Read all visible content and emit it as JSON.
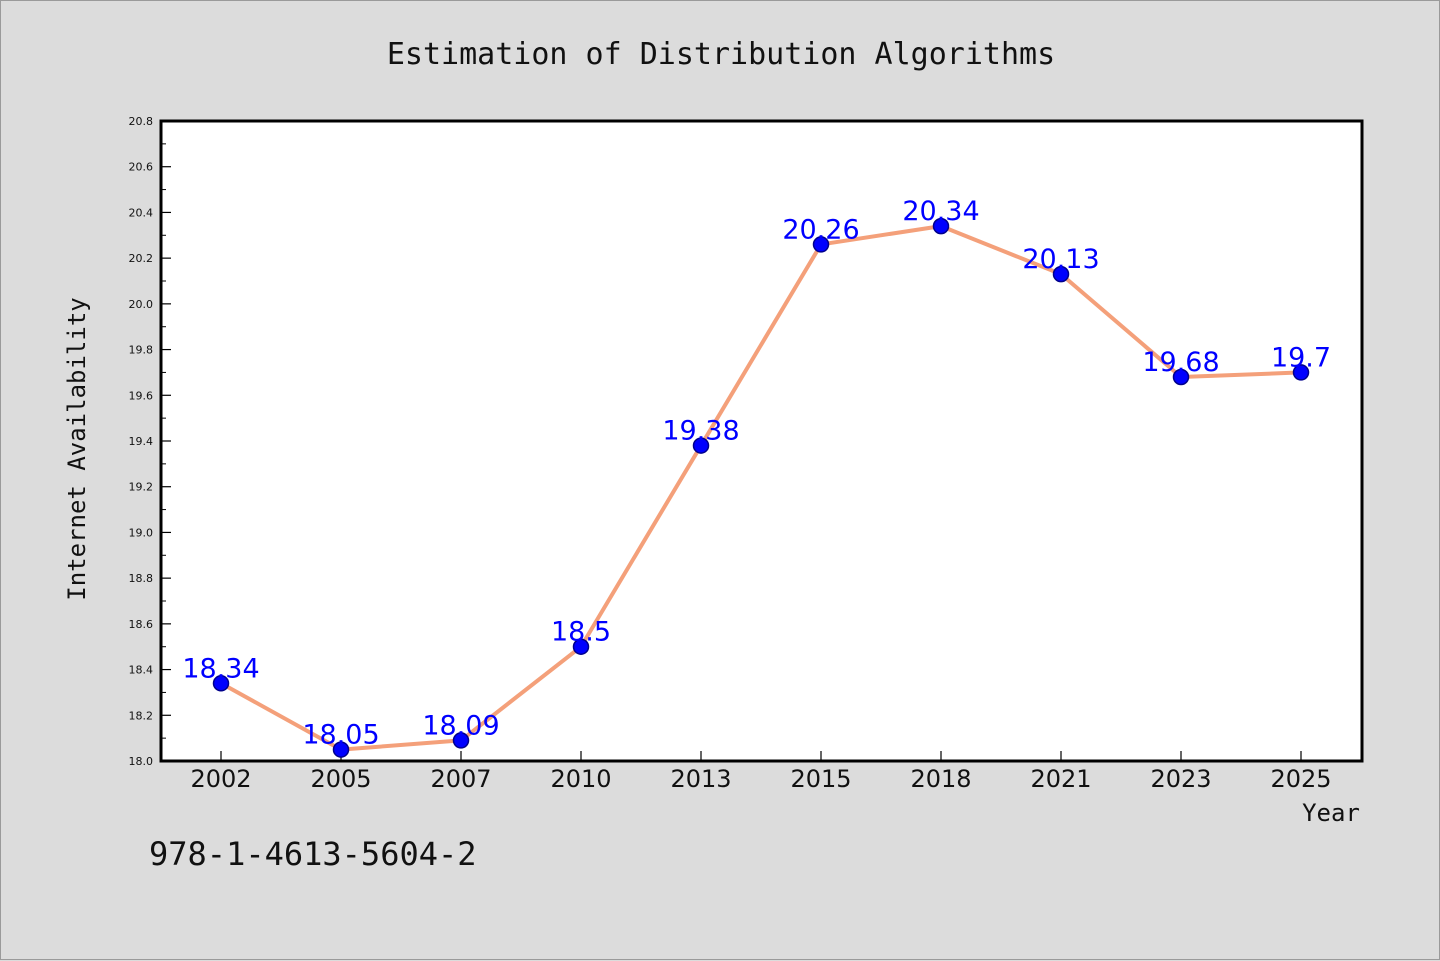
{
  "chart_data": {
    "type": "line",
    "title": "Estimation of Distribution Algorithms",
    "xlabel": "Year",
    "ylabel": "Internet Availability",
    "categories": [
      "2002",
      "2005",
      "2007",
      "2010",
      "2013",
      "2015",
      "2018",
      "2021",
      "2023",
      "2025"
    ],
    "series": [
      {
        "values": [
          18.34,
          18.05,
          18.09,
          18.5,
          19.38,
          20.26,
          20.34,
          20.13,
          19.68,
          19.7
        ],
        "data_labels": [
          "18.34",
          "18.05",
          "18.09",
          "18.5",
          "19.38",
          "20.26",
          "20.34",
          "20.13",
          "19.68",
          "19.7"
        ]
      }
    ],
    "ylim": [
      18.0,
      20.8
    ],
    "yticks": [
      "18.0",
      "18.2",
      "18.4",
      "18.6",
      "18.8",
      "19.0",
      "19.2",
      "19.4",
      "19.6",
      "19.8",
      "20.0",
      "20.2",
      "20.4",
      "20.6",
      "20.8"
    ],
    "grid": false,
    "colors": {
      "line": "#f4a07a",
      "marker_fill": "#0000ff",
      "marker_edge": "#00008b",
      "label": "#0000ff",
      "plot_background": "#ffffff",
      "figure_background": "#dcdcdc"
    }
  },
  "footer": {
    "isbn": "978-1-4613-5604-2"
  }
}
